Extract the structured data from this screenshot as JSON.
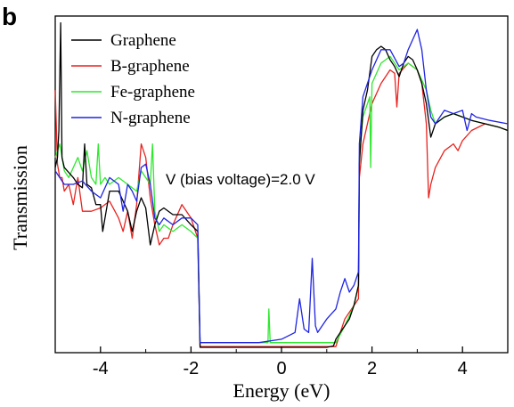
{
  "panel_label": "b",
  "chart_data": {
    "type": "line",
    "title": "",
    "xlabel": "Energy (eV)",
    "ylabel": "Transmission",
    "xlim": [
      -5,
      5
    ],
    "ylim": [
      0,
      1
    ],
    "x_ticks": [
      -4,
      -2,
      0,
      2,
      4
    ],
    "x_tick_labels": [
      "-4",
      "-2",
      "0",
      "2",
      "4"
    ],
    "y_tick_labels_shown": false,
    "grid": false,
    "legend_placement": "top-left",
    "annotation": "V (bias voltage)=2.0 V",
    "series": [
      {
        "name": "Graphene",
        "color": "#000000",
        "x": [
          -5,
          -4.95,
          -4.92,
          -4.88,
          -4.85,
          -4.8,
          -4.6,
          -4.5,
          -4.4,
          -4.35,
          -4.3,
          -4.2,
          -4.1,
          -4.0,
          -3.95,
          -3.8,
          -3.6,
          -3.4,
          -3.3,
          -3.2,
          -3.1,
          -3.0,
          -2.9,
          -2.8,
          -2.7,
          -2.6,
          -2.4,
          -2.2,
          -2.0,
          -1.85,
          -1.8,
          -1.5,
          -1.0,
          -0.5,
          0,
          0.5,
          1.0,
          1.15,
          1.2,
          1.3,
          1.4,
          1.5,
          1.6,
          1.7,
          1.72,
          1.8,
          1.9,
          2.0,
          2.1,
          2.2,
          2.3,
          2.4,
          2.5,
          2.6,
          2.7,
          2.8,
          2.9,
          3.0,
          3.1,
          3.2,
          3.3,
          3.4,
          3.6,
          3.8,
          4.0,
          4.2,
          4.5,
          4.8,
          5.0
        ],
        "values": [
          0.55,
          0.58,
          0.66,
          0.98,
          0.58,
          0.55,
          0.52,
          0.5,
          0.49,
          0.62,
          0.5,
          0.49,
          0.44,
          0.44,
          0.36,
          0.48,
          0.48,
          0.42,
          0.36,
          0.42,
          0.46,
          0.43,
          0.32,
          0.38,
          0.42,
          0.43,
          0.41,
          0.41,
          0.38,
          0.36,
          0.016,
          0.016,
          0.016,
          0.016,
          0.016,
          0.016,
          0.016,
          0.02,
          0.04,
          0.06,
          0.08,
          0.1,
          0.14,
          0.2,
          0.56,
          0.72,
          0.78,
          0.88,
          0.9,
          0.91,
          0.9,
          0.87,
          0.85,
          0.82,
          0.86,
          0.88,
          0.87,
          0.84,
          0.8,
          0.74,
          0.64,
          0.68,
          0.7,
          0.71,
          0.7,
          0.69,
          0.68,
          0.67,
          0.66
        ]
      },
      {
        "name": "B-graphene",
        "color": "#e8231f",
        "x": [
          -5,
          -4.95,
          -4.9,
          -4.85,
          -4.8,
          -4.7,
          -4.6,
          -4.5,
          -4.4,
          -4.2,
          -4.0,
          -3.8,
          -3.6,
          -3.5,
          -3.4,
          -3.3,
          -3.2,
          -3.1,
          -3.0,
          -2.9,
          -2.8,
          -2.7,
          -2.6,
          -2.5,
          -2.4,
          -2.2,
          -2.0,
          -1.85,
          -1.8,
          -1.5,
          -1.0,
          -0.5,
          0,
          0.5,
          1.0,
          1.2,
          1.3,
          1.4,
          1.5,
          1.6,
          1.7,
          1.72,
          1.8,
          2.0,
          2.2,
          2.4,
          2.5,
          2.55,
          2.6,
          2.8,
          3.0,
          3.1,
          3.2,
          3.25,
          3.3,
          3.4,
          3.6,
          3.8,
          3.9,
          4.0,
          4.2,
          4.5,
          4.8,
          5.0
        ],
        "values": [
          0.78,
          0.56,
          0.52,
          0.52,
          0.48,
          0.5,
          0.44,
          0.52,
          0.42,
          0.42,
          0.43,
          0.45,
          0.4,
          0.36,
          0.42,
          0.34,
          0.44,
          0.62,
          0.58,
          0.46,
          0.38,
          0.32,
          0.34,
          0.34,
          0.38,
          0.44,
          0.4,
          0.34,
          0.018,
          0.018,
          0.018,
          0.018,
          0.018,
          0.018,
          0.018,
          0.018,
          0.06,
          0.1,
          0.12,
          0.14,
          0.16,
          0.52,
          0.62,
          0.74,
          0.8,
          0.84,
          0.83,
          0.73,
          0.83,
          0.86,
          0.84,
          0.8,
          0.68,
          0.46,
          0.5,
          0.55,
          0.6,
          0.62,
          0.6,
          0.63,
          0.66,
          0.68,
          0.67,
          0.66
        ]
      },
      {
        "name": "Fe-graphene",
        "color": "#2ee82e",
        "x": [
          -5,
          -4.9,
          -4.8,
          -4.7,
          -4.6,
          -4.5,
          -4.4,
          -4.3,
          -4.2,
          -4.1,
          -4.05,
          -4.0,
          -3.9,
          -3.8,
          -3.6,
          -3.4,
          -3.2,
          -3.1,
          -3.0,
          -2.9,
          -2.85,
          -2.8,
          -2.7,
          -2.6,
          -2.4,
          -2.2,
          -2.0,
          -1.85,
          -1.8,
          -1.5,
          -1.0,
          -0.6,
          -0.3,
          -0.28,
          -0.25,
          -0.2,
          0,
          0.5,
          1.0,
          1.2,
          1.4,
          1.6,
          1.7,
          1.72,
          1.8,
          1.95,
          1.97,
          2.0,
          2.2,
          2.4,
          2.6,
          2.8,
          3.0,
          3.2,
          3.3,
          3.4,
          3.6,
          3.8,
          4.0,
          4.2,
          4.5,
          4.8,
          5.0
        ],
        "values": [
          0.58,
          0.62,
          0.54,
          0.52,
          0.55,
          0.58,
          0.54,
          0.6,
          0.52,
          0.5,
          0.62,
          0.5,
          0.52,
          0.5,
          0.52,
          0.5,
          0.48,
          0.54,
          0.52,
          0.5,
          0.62,
          0.42,
          0.36,
          0.38,
          0.36,
          0.38,
          0.36,
          0.34,
          0.03,
          0.03,
          0.03,
          0.03,
          0.03,
          0.13,
          0.03,
          0.03,
          0.03,
          0.03,
          0.03,
          0.03,
          0.08,
          0.14,
          0.2,
          0.58,
          0.7,
          0.76,
          0.55,
          0.8,
          0.86,
          0.88,
          0.84,
          0.86,
          0.84,
          0.78,
          0.72,
          0.68,
          0.7,
          0.71,
          0.7,
          0.69,
          0.68,
          0.67,
          0.66
        ]
      },
      {
        "name": "N-graphene",
        "color": "#1f24e0",
        "x": [
          -5,
          -4.8,
          -4.6,
          -4.4,
          -4.2,
          -4.0,
          -3.8,
          -3.6,
          -3.5,
          -3.4,
          -3.3,
          -3.2,
          -3.1,
          -3.0,
          -2.9,
          -2.8,
          -2.7,
          -2.6,
          -2.4,
          -2.2,
          -2.0,
          -1.85,
          -1.8,
          -1.5,
          -1.0,
          -0.5,
          0,
          0.3,
          0.4,
          0.5,
          0.6,
          0.68,
          0.75,
          0.8,
          1.0,
          1.2,
          1.3,
          1.4,
          1.5,
          1.6,
          1.7,
          1.72,
          1.8,
          2.0,
          2.2,
          2.4,
          2.6,
          2.7,
          2.8,
          2.9,
          3.0,
          3.1,
          3.2,
          3.3,
          3.4,
          3.6,
          3.8,
          4.0,
          4.1,
          4.2,
          4.3,
          4.6,
          5.0
        ],
        "values": [
          0.54,
          0.5,
          0.5,
          0.51,
          0.48,
          0.46,
          0.52,
          0.5,
          0.42,
          0.5,
          0.48,
          0.45,
          0.55,
          0.56,
          0.5,
          0.4,
          0.38,
          0.4,
          0.38,
          0.4,
          0.4,
          0.38,
          0.03,
          0.03,
          0.03,
          0.03,
          0.04,
          0.06,
          0.16,
          0.07,
          0.06,
          0.28,
          0.08,
          0.06,
          0.1,
          0.13,
          0.18,
          0.22,
          0.18,
          0.2,
          0.24,
          0.62,
          0.76,
          0.84,
          0.9,
          0.9,
          0.85,
          0.86,
          0.9,
          0.93,
          0.96,
          0.9,
          0.78,
          0.7,
          0.68,
          0.72,
          0.71,
          0.72,
          0.66,
          0.71,
          0.7,
          0.69,
          0.68
        ]
      }
    ]
  }
}
